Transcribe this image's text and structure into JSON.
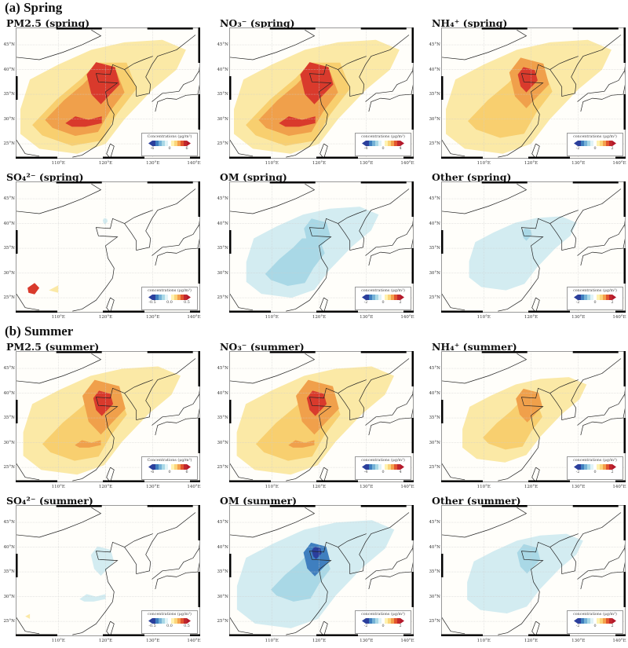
{
  "sections": [
    {
      "label": "(a) Spring"
    },
    {
      "label": "(b) Summer"
    }
  ],
  "lat_labels": [
    "45°N",
    "40°N",
    "35°N",
    "30°N",
    "25°N"
  ],
  "lon_labels": [
    "110°E",
    "120°E",
    "130°E",
    "140°E"
  ],
  "colors": {
    "dark_blue": "#2b3f9c",
    "blue": "#3f7fbf",
    "light_blue": "#a9d8e6",
    "pale_blue": "#d3ecf1",
    "pale_yellow": "#fbe9a6",
    "yellow": "#f8cf6f",
    "orange": "#f0a04b",
    "red": "#d93a2c",
    "dark_red": "#b2182b"
  },
  "panels": [
    {
      "title": "PM2.5 (spring)",
      "cbar_label": "Concentrations (μg/m³)",
      "ticks": [
        "-6",
        "0",
        "6"
      ],
      "pattern": "pm"
    },
    {
      "title": "NO₃⁻ (spring)",
      "cbar_label": "concentrations (μg/m³)",
      "ticks": [
        "-4",
        "0",
        "4"
      ],
      "pattern": "pm"
    },
    {
      "title": "NH₄⁺ (spring)",
      "cbar_label": "concentrations (μg/m³)",
      "ticks": [
        "-2",
        "0",
        "2"
      ],
      "pattern": "nh"
    },
    {
      "title": "SO₄²⁻ (spring)",
      "cbar_label": "concentrations (μg/m³)",
      "ticks": [
        "-0.5",
        "0.0",
        "0.5"
      ],
      "pattern": "so"
    },
    {
      "title": "OM (spring)",
      "cbar_label": "concentrations (μg/m³)",
      "ticks": [
        "-2",
        "0",
        "2"
      ],
      "pattern": "om"
    },
    {
      "title": "Other (spring)",
      "cbar_label": "concentrations (μg/m³)",
      "ticks": [
        "-2",
        "0",
        "2"
      ],
      "pattern": "ot"
    },
    {
      "title": "PM2.5 (summer)",
      "cbar_label": "Concentrations (μg/m³)",
      "ticks": [
        "-6",
        "0",
        "6"
      ],
      "pattern": "pm2"
    },
    {
      "title": "NO₃⁻ (summer)",
      "cbar_label": "concentrations (μg/m³)",
      "ticks": [
        "-4",
        "0",
        "4"
      ],
      "pattern": "pm2"
    },
    {
      "title": "NH₄⁺ (summer)",
      "cbar_label": "concentrations (μg/m³)",
      "ticks": [
        "-2",
        "0",
        "2"
      ],
      "pattern": "nh2"
    },
    {
      "title": "SO₄²⁻ (summer)",
      "cbar_label": "concentrations (μg/m³)",
      "ticks": [
        "-0.5",
        "0.0",
        "0.5"
      ],
      "pattern": "so2"
    },
    {
      "title": "OM (summer)",
      "cbar_label": "concentrations (μg/m³)",
      "ticks": [
        "-2",
        "0",
        "2"
      ],
      "pattern": "om2"
    },
    {
      "title": "Other (summer)",
      "cbar_label": "concentrations (μg/m³)",
      "ticks": [
        "-2",
        "0",
        "2"
      ],
      "pattern": "ot2"
    }
  ]
}
